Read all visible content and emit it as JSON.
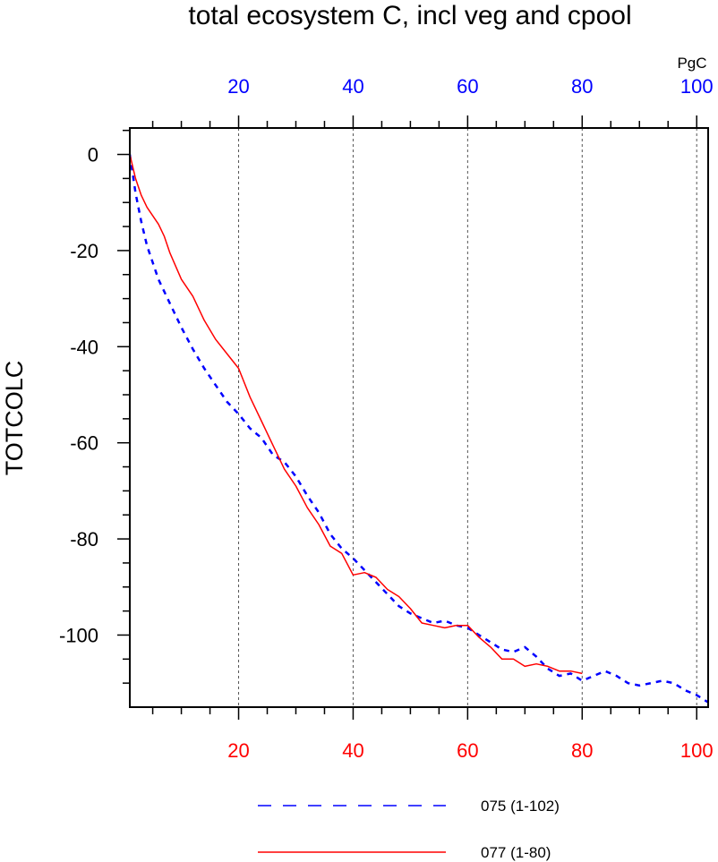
{
  "chart_data": {
    "type": "line",
    "title": "total ecosystem C, incl veg and cpool",
    "ylabel": "TOTCOLC",
    "top_axis_unit": "PgC",
    "xlim": [
      1,
      102
    ],
    "ylim": [
      -115,
      5.5
    ],
    "grid": "vertical-dashed",
    "x_ticks": [
      20,
      40,
      60,
      80,
      100
    ],
    "y_ticks": [
      0,
      -20,
      -40,
      -60,
      -80,
      -100
    ],
    "bottom_axis_color": "#ff0000",
    "top_axis_color": "#0000ff",
    "legend_placement": "bottom",
    "series": [
      {
        "name": "075 (1-102)",
        "color": "#0000ff",
        "style": "dashed",
        "x": [
          1,
          2,
          3,
          4,
          6,
          8,
          10,
          12,
          14,
          16,
          18,
          20,
          22,
          24,
          26,
          28,
          30,
          32,
          34,
          36,
          38,
          40,
          42,
          44,
          46,
          48,
          50,
          52,
          54,
          56,
          58,
          60,
          62,
          64,
          66,
          68,
          70,
          72,
          74,
          76,
          78,
          80,
          82,
          84,
          86,
          88,
          90,
          92,
          94,
          96,
          98,
          100,
          102
        ],
        "y": [
          0,
          -8,
          -14,
          -19,
          -26,
          -31,
          -36,
          -40.5,
          -44.5,
          -48,
          -51.5,
          -54,
          -57,
          -59,
          -62.5,
          -64,
          -67,
          -71,
          -74.5,
          -79,
          -82,
          -84,
          -86.5,
          -89,
          -91.5,
          -94,
          -95.5,
          -96.5,
          -97.5,
          -97,
          -98,
          -98.5,
          -100,
          -101.5,
          -103,
          -103.5,
          -102.5,
          -104.5,
          -107,
          -108.5,
          -108,
          -109.5,
          -108.5,
          -107.5,
          -108.5,
          -110,
          -110.5,
          -110,
          -109.5,
          -110,
          -111.5,
          -112.5,
          -114
        ]
      },
      {
        "name": "077 (1-80)",
        "color": "#ff0000",
        "style": "solid",
        "x": [
          1,
          2,
          3,
          4,
          6,
          7,
          8,
          10,
          12,
          14,
          16,
          18,
          20,
          22,
          24,
          26,
          28,
          30,
          32,
          34,
          36,
          38,
          40,
          42,
          44,
          46,
          48,
          50,
          52,
          54,
          56,
          58,
          60,
          62,
          64,
          66,
          68,
          70,
          72,
          74,
          76,
          78,
          80
        ],
        "y": [
          0,
          -5,
          -8.5,
          -11,
          -14.5,
          -17,
          -20.5,
          -26,
          -29.5,
          -34.5,
          -38.5,
          -41.5,
          -44.5,
          -50.5,
          -55.5,
          -60.5,
          -65.5,
          -69,
          -73.5,
          -77,
          -81.5,
          -83,
          -87.5,
          -87,
          -88,
          -90.5,
          -92,
          -94.5,
          -97.5,
          -98,
          -98.5,
          -98,
          -98,
          -100.5,
          -102.5,
          -105,
          -105,
          -106.5,
          -106,
          -106.5,
          -107.5,
          -107.5,
          -108
        ]
      }
    ]
  }
}
